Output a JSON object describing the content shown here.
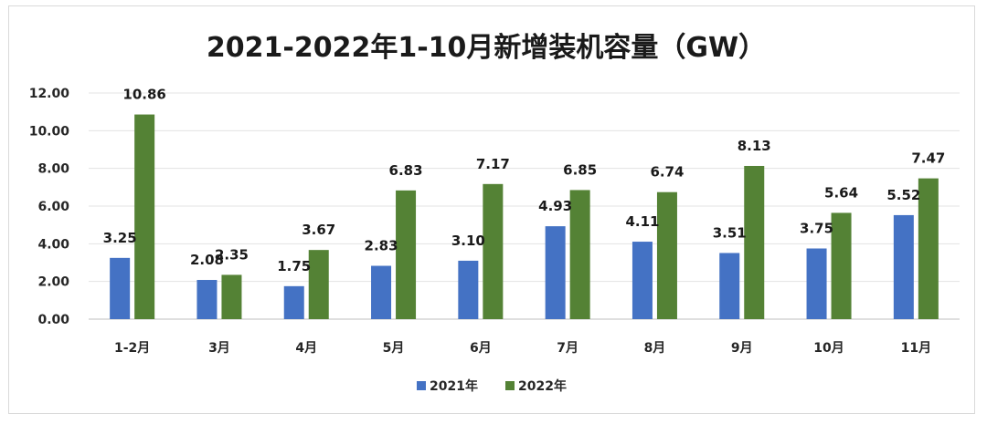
{
  "chart_data": {
    "type": "bar",
    "title": "2021-2022年1-10月新增装机容量（GW）",
    "categories": [
      "1-2月",
      "3月",
      "4月",
      "5月",
      "6月",
      "7月",
      "8月",
      "9月",
      "10月",
      "11月"
    ],
    "series": [
      {
        "name": "2021年",
        "color": "#4472c4",
        "values": [
          3.25,
          2.08,
          1.75,
          2.83,
          3.1,
          4.93,
          4.11,
          3.51,
          3.75,
          5.52
        ],
        "labels": [
          "3.25",
          "2.08",
          "1.75",
          "2.83",
          "3.10",
          "4.93",
          "4.11",
          "3.51",
          "3.75",
          "5.52"
        ]
      },
      {
        "name": "2022年",
        "color": "#548235",
        "values": [
          10.86,
          2.35,
          3.67,
          6.83,
          7.17,
          6.85,
          6.74,
          8.13,
          5.64,
          7.47
        ],
        "labels": [
          "10.86",
          "2.35",
          "3.67",
          "6.83",
          "7.17",
          "6.85",
          "6.74",
          "8.13",
          "5.64",
          "7.47"
        ]
      }
    ],
    "yticks": [
      "0.00",
      "2.00",
      "4.00",
      "6.00",
      "8.00",
      "10.00",
      "12.00"
    ],
    "ylim": [
      0,
      12
    ],
    "grid": true,
    "legend": "bottom-center"
  }
}
